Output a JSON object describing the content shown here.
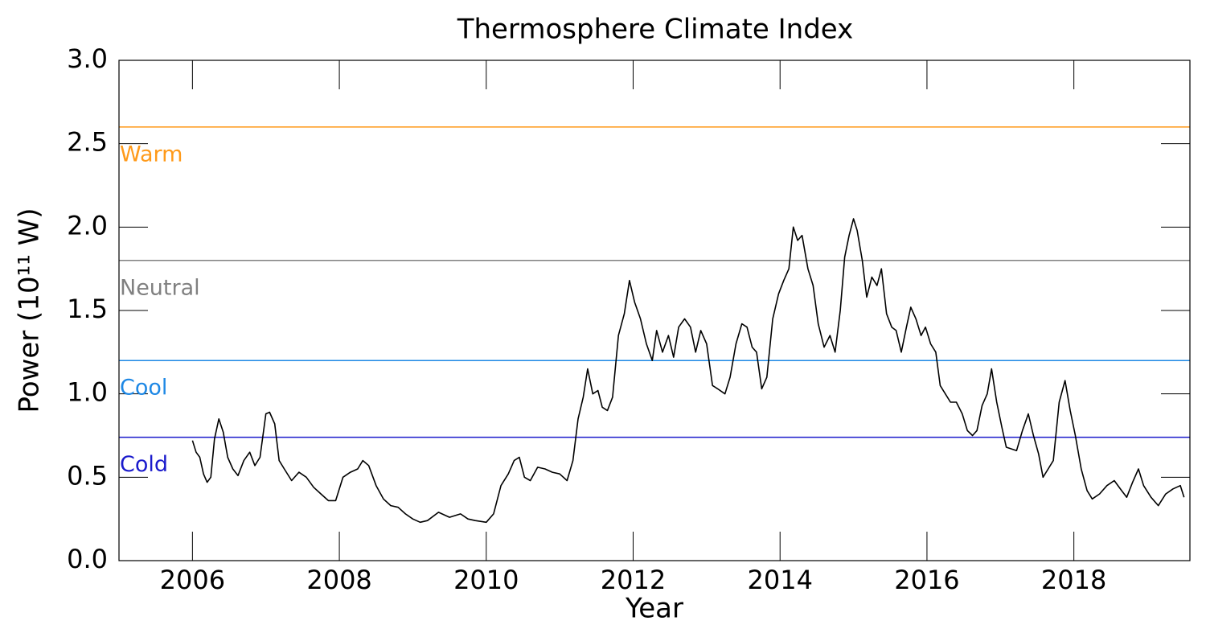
{
  "chart_data": {
    "type": "line",
    "title": "Thermosphere Climate Index",
    "xlabel": "Year",
    "ylabel": "Power (10¹¹ W)",
    "xlim": [
      2005,
      2019.58
    ],
    "xticks": [
      2006,
      2008,
      2010,
      2012,
      2014,
      2016,
      2018
    ],
    "ylim": [
      0,
      3
    ],
    "yticks": [
      {
        "value": 0,
        "label": "0.0"
      },
      {
        "value": 0.5,
        "label": "0.5"
      },
      {
        "value": 1,
        "label": "1.0"
      },
      {
        "value": 1.5,
        "label": "1.5"
      },
      {
        "value": 2,
        "label": "2.0"
      },
      {
        "value": 2.5,
        "label": "2.5"
      },
      {
        "value": 3,
        "label": "3.0"
      }
    ],
    "reference_lines": [
      {
        "name": "Warm",
        "value": 2.6,
        "color": "#ff9a1a"
      },
      {
        "name": "Neutral",
        "value": 1.8,
        "color": "#808080"
      },
      {
        "name": "Cool",
        "value": 1.2,
        "color": "#1e88e5"
      },
      {
        "name": "Cold",
        "value": 0.74,
        "color": "#1a1acc"
      }
    ],
    "series": [
      {
        "color": "#000000",
        "x": [
          2006.0,
          2006.05,
          2006.1,
          2006.15,
          2006.2,
          2006.25,
          2006.3,
          2006.36,
          2006.42,
          2006.48,
          2006.55,
          2006.62,
          2006.7,
          2006.78,
          2006.85,
          2006.92,
          2007.0,
          2007.05,
          2007.12,
          2007.18,
          2007.25,
          2007.35,
          2007.45,
          2007.55,
          2007.65,
          2007.75,
          2007.85,
          2007.95,
          2008.05,
          2008.15,
          2008.25,
          2008.32,
          2008.4,
          2008.5,
          2008.6,
          2008.7,
          2008.8,
          2008.9,
          2009.0,
          2009.1,
          2009.2,
          2009.35,
          2009.5,
          2009.65,
          2009.75,
          2009.85,
          2010.0,
          2010.1,
          2010.2,
          2010.3,
          2010.38,
          2010.45,
          2010.52,
          2010.6,
          2010.7,
          2010.8,
          2010.9,
          2011.0,
          2011.1,
          2011.18,
          2011.25,
          2011.32,
          2011.38,
          2011.45,
          2011.52,
          2011.58,
          2011.65,
          2011.72,
          2011.8,
          2011.88,
          2011.95,
          2012.02,
          2012.1,
          2012.18,
          2012.26,
          2012.32,
          2012.4,
          2012.48,
          2012.55,
          2012.62,
          2012.7,
          2012.78,
          2012.85,
          2012.92,
          2013.0,
          2013.08,
          2013.15,
          2013.25,
          2013.32,
          2013.4,
          2013.48,
          2013.55,
          2013.62,
          2013.68,
          2013.75,
          2013.82,
          2013.9,
          2013.98,
          2014.05,
          2014.12,
          2014.18,
          2014.24,
          2014.3,
          2014.38,
          2014.45,
          2014.52,
          2014.6,
          2014.68,
          2014.75,
          2014.82,
          2014.88,
          2014.94,
          2015.0,
          2015.05,
          2015.12,
          2015.18,
          2015.25,
          2015.32,
          2015.38,
          2015.45,
          2015.52,
          2015.58,
          2015.65,
          2015.72,
          2015.78,
          2015.85,
          2015.92,
          2015.98,
          2016.05,
          2016.12,
          2016.18,
          2016.25,
          2016.32,
          2016.4,
          2016.48,
          2016.55,
          2016.62,
          2016.68,
          2016.75,
          2016.82,
          2016.88,
          2016.95,
          2017.02,
          2017.08,
          2017.15,
          2017.22,
          2017.3,
          2017.38,
          2017.45,
          2017.52,
          2017.58,
          2017.65,
          2017.72,
          2017.8,
          2017.88,
          2017.95,
          2018.02,
          2018.1,
          2018.18,
          2018.25,
          2018.35,
          2018.45,
          2018.55,
          2018.65,
          2018.72,
          2018.8,
          2018.88,
          2018.95,
          2019.05,
          2019.15,
          2019.25,
          2019.35,
          2019.45,
          2019.5
        ],
        "values": [
          0.72,
          0.65,
          0.62,
          0.52,
          0.47,
          0.5,
          0.73,
          0.85,
          0.77,
          0.62,
          0.55,
          0.51,
          0.6,
          0.65,
          0.57,
          0.62,
          0.88,
          0.89,
          0.82,
          0.6,
          0.55,
          0.48,
          0.53,
          0.5,
          0.44,
          0.4,
          0.36,
          0.36,
          0.5,
          0.53,
          0.55,
          0.6,
          0.57,
          0.45,
          0.37,
          0.33,
          0.32,
          0.28,
          0.25,
          0.23,
          0.24,
          0.29,
          0.26,
          0.28,
          0.25,
          0.24,
          0.23,
          0.28,
          0.45,
          0.52,
          0.6,
          0.62,
          0.5,
          0.48,
          0.56,
          0.55,
          0.53,
          0.52,
          0.48,
          0.6,
          0.85,
          0.98,
          1.15,
          1.0,
          1.02,
          0.92,
          0.9,
          0.98,
          1.35,
          1.48,
          1.68,
          1.55,
          1.45,
          1.3,
          1.2,
          1.38,
          1.25,
          1.35,
          1.22,
          1.4,
          1.45,
          1.4,
          1.25,
          1.38,
          1.3,
          1.05,
          1.03,
          1.0,
          1.1,
          1.3,
          1.42,
          1.4,
          1.28,
          1.25,
          1.03,
          1.1,
          1.45,
          1.6,
          1.68,
          1.75,
          2.0,
          1.92,
          1.95,
          1.75,
          1.65,
          1.42,
          1.28,
          1.35,
          1.25,
          1.5,
          1.82,
          1.95,
          2.05,
          1.98,
          1.8,
          1.58,
          1.7,
          1.65,
          1.75,
          1.48,
          1.4,
          1.38,
          1.25,
          1.4,
          1.52,
          1.45,
          1.35,
          1.4,
          1.3,
          1.25,
          1.05,
          1.0,
          0.95,
          0.95,
          0.88,
          0.78,
          0.75,
          0.78,
          0.93,
          1.0,
          1.15,
          0.95,
          0.8,
          0.68,
          0.67,
          0.66,
          0.78,
          0.88,
          0.75,
          0.64,
          0.5,
          0.55,
          0.6,
          0.95,
          1.08,
          0.9,
          0.75,
          0.55,
          0.42,
          0.37,
          0.4,
          0.45,
          0.48,
          0.42,
          0.38,
          0.47,
          0.55,
          0.45,
          0.38,
          0.33,
          0.4,
          0.43,
          0.45,
          0.38
        ]
      }
    ]
  }
}
